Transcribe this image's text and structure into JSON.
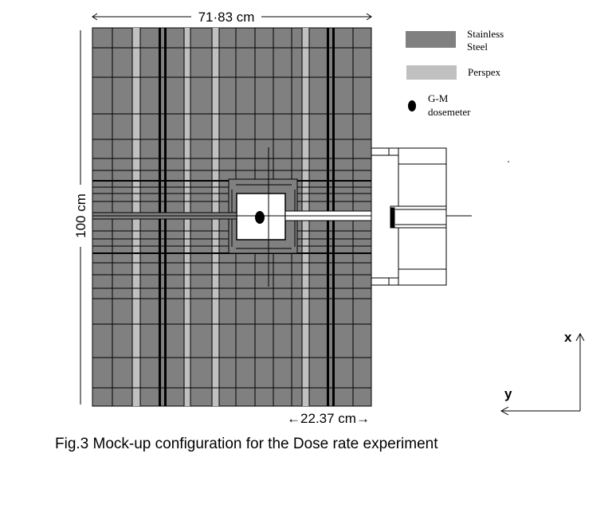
{
  "dimensions": {
    "width_label": "71·83 cm",
    "height_label": "100 cm",
    "offset_label": "←22.37 cm→"
  },
  "legend": {
    "items": [
      {
        "label_line1": "Stainless",
        "label_line2": "Steel",
        "color": "#808080"
      },
      {
        "label_line1": "Perspex",
        "label_line2": "",
        "color": "#c0c0c0"
      },
      {
        "label_line1": "G-M",
        "label_line2": "dosemeter",
        "color": "#000000"
      }
    ]
  },
  "axes": {
    "x_label": "x",
    "y_label": "y"
  },
  "caption": "Fig.3 Mock-up configuration for the Dose rate experiment",
  "colors": {
    "steel": "#808080",
    "perspex": "#c0c0c0",
    "line": "#000000",
    "background": "#ffffff"
  }
}
